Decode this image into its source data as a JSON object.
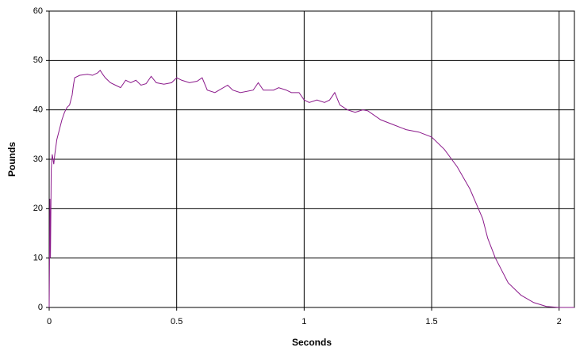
{
  "chart_data": {
    "type": "line",
    "xlabel": "Seconds",
    "ylabel": "Pounds",
    "x": [
      0,
      0.003,
      0.005,
      0.008,
      0.012,
      0.018,
      0.022,
      0.03,
      0.04,
      0.05,
      0.06,
      0.07,
      0.08,
      0.09,
      0.095,
      0.1,
      0.12,
      0.15,
      0.17,
      0.19,
      0.2,
      0.21,
      0.22,
      0.24,
      0.26,
      0.28,
      0.3,
      0.32,
      0.34,
      0.36,
      0.38,
      0.4,
      0.42,
      0.45,
      0.48,
      0.5,
      0.52,
      0.55,
      0.58,
      0.6,
      0.62,
      0.65,
      0.7,
      0.72,
      0.75,
      0.8,
      0.82,
      0.84,
      0.88,
      0.9,
      0.93,
      0.95,
      0.98,
      1,
      1.02,
      1.05,
      1.08,
      1.1,
      1.12,
      1.14,
      1.17,
      1.2,
      1.23,
      1.25,
      1.3,
      1.35,
      1.4,
      1.45,
      1.5,
      1.55,
      1.6,
      1.65,
      1.7,
      1.72,
      1.75,
      1.8,
      1.85,
      1.9,
      1.95,
      2,
      2.06
    ],
    "values": [
      0,
      22,
      10,
      28,
      31,
      29,
      31,
      34,
      36,
      38,
      39.5,
      40.5,
      41,
      43,
      45,
      46.5,
      47,
      47.2,
      47,
      47.5,
      48,
      47.2,
      46.5,
      45.5,
      45,
      44.5,
      46,
      45.5,
      46,
      45,
      45.3,
      46.8,
      45.5,
      45.2,
      45.5,
      46.5,
      46,
      45.5,
      45.8,
      46.5,
      44,
      43.5,
      45,
      44,
      43.5,
      44,
      45.5,
      44,
      44,
      44.5,
      44,
      43.5,
      43.5,
      42,
      41.5,
      42,
      41.5,
      42,
      43.5,
      41,
      40,
      39.5,
      40,
      39.8,
      38,
      37,
      36,
      35.5,
      34.5,
      32,
      28.5,
      24,
      18,
      14,
      10,
      5,
      2.5,
      1,
      0.2,
      0,
      0
    ],
    "color": "#8b1a8b",
    "xlim": [
      0,
      2.06
    ],
    "xticks": [
      0,
      0.5,
      1,
      1.5,
      2
    ],
    "ylim": [
      0,
      60
    ],
    "yticks": [
      0,
      10,
      20,
      30,
      40,
      50,
      60
    ],
    "grid": true
  }
}
